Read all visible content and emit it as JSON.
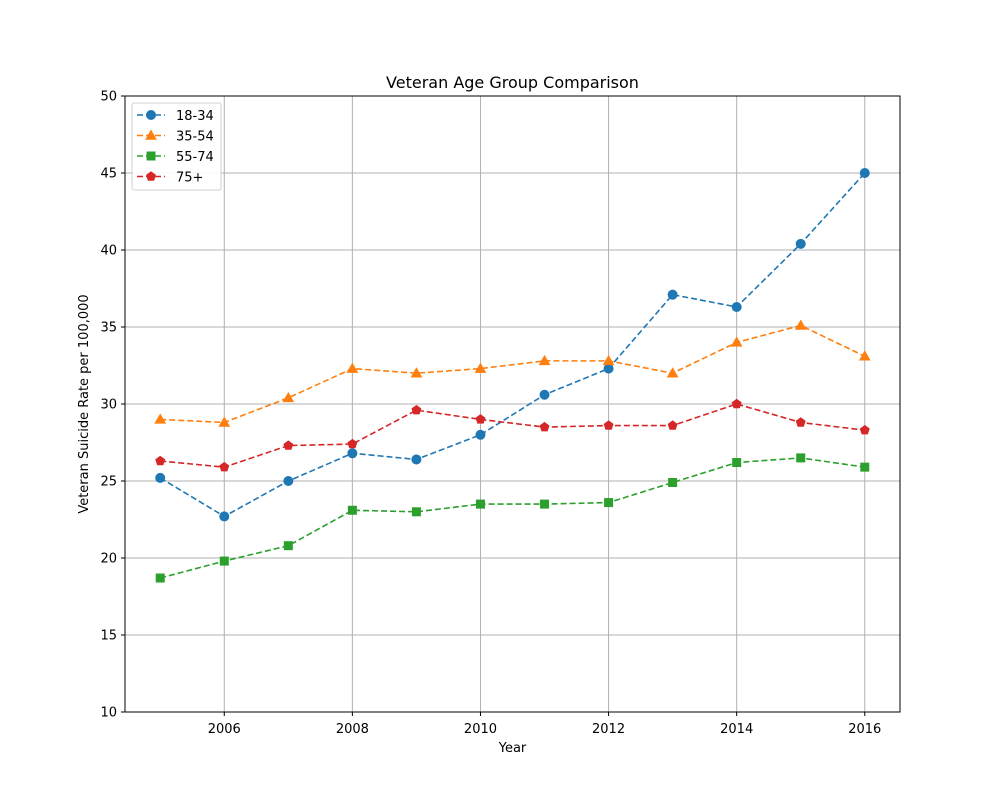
{
  "chart_data": {
    "type": "line",
    "title": "Veteran Age Group Comparison",
    "xlabel": "Year",
    "ylabel": "Veteran Suicide Rate per 100,000",
    "x": [
      2005,
      2006,
      2007,
      2008,
      2009,
      2010,
      2011,
      2012,
      2013,
      2014,
      2015,
      2016
    ],
    "xticks": [
      "2006",
      "2008",
      "2010",
      "2012",
      "2014",
      "2016"
    ],
    "yticks": [
      "10",
      "15",
      "20",
      "25",
      "30",
      "35",
      "40",
      "45",
      "50"
    ],
    "xlim": [
      2004.45,
      2016.55
    ],
    "ylim": [
      10,
      50
    ],
    "grid": true,
    "legend_position": "top-left",
    "line_style": "dashed",
    "series": [
      {
        "name": "18-34",
        "marker": "circle",
        "color": "#1f77b4",
        "values": [
          25.2,
          22.7,
          25.0,
          26.8,
          26.4,
          28.0,
          30.6,
          32.3,
          37.1,
          36.3,
          40.4,
          45.0
        ]
      },
      {
        "name": "35-54",
        "marker": "triangle",
        "color": "#ff7f0e",
        "values": [
          29.0,
          28.8,
          30.4,
          32.3,
          32.0,
          32.3,
          32.8,
          32.8,
          32.0,
          34.0,
          35.1,
          33.1
        ]
      },
      {
        "name": "55-74",
        "marker": "square",
        "color": "#2ca02c",
        "values": [
          18.7,
          19.8,
          20.8,
          23.1,
          23.0,
          23.5,
          23.5,
          23.6,
          24.9,
          26.2,
          26.5,
          25.9
        ]
      },
      {
        "name": "75+",
        "marker": "pentagon",
        "color": "#d62728",
        "values": [
          26.3,
          25.9,
          27.3,
          27.4,
          29.6,
          29.0,
          28.5,
          28.6,
          28.6,
          30.0,
          28.8,
          28.3
        ]
      }
    ]
  }
}
